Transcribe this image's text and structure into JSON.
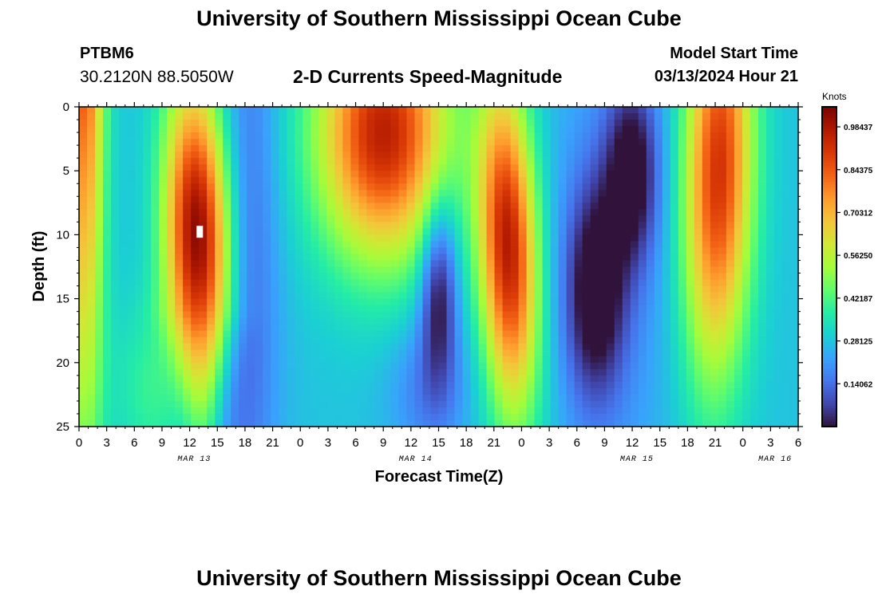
{
  "header": {
    "title": "University of Southern Mississippi Ocean Cube",
    "station_id": "PTBM6",
    "station_coords": "30.2120N  88.5050W",
    "chart_title": "2-D Currents Speed-Magnitude",
    "model_start_label": "Model Start Time",
    "model_start_value": "03/13/2024 Hour 21"
  },
  "footer": {
    "title": "University of Southern Mississippi Ocean Cube"
  },
  "chart_data": {
    "type": "heatmap",
    "title": "2-D Currents Speed-Magnitude",
    "xlabel": "Forecast Time(Z)",
    "ylabel": "Depth (ft)",
    "x_tick_labels": [
      "0",
      "3",
      "6",
      "9",
      "12",
      "15",
      "18",
      "21",
      "0",
      "3",
      "6",
      "9",
      "12",
      "15",
      "18",
      "21",
      "0",
      "3",
      "6",
      "9",
      "12",
      "15",
      "18",
      "21",
      "0",
      "3",
      "6"
    ],
    "date_labels": [
      {
        "text": "MAR 13",
        "hour": 12.5
      },
      {
        "text": "MAR 14",
        "hour": 36.5
      },
      {
        "text": "MAR 15",
        "hour": 60.5
      },
      {
        "text": "MAR 16",
        "hour": 75.5
      }
    ],
    "x_range_hours": [
      0,
      78
    ],
    "y_range_ft": [
      0,
      25
    ],
    "y_ticks": [
      0,
      5,
      10,
      15,
      20,
      25
    ],
    "y_tick_labels": [
      "0",
      "5",
      "10",
      "15",
      "20",
      "25"
    ],
    "colorbar": {
      "title": "Knots",
      "range": [
        0,
        1.05
      ],
      "tick_values": [
        0.98437,
        0.84375,
        0.70312,
        0.5625,
        0.42187,
        0.28125,
        0.14062
      ],
      "tick_labels": [
        "0.98437",
        "0.84375",
        "0.70312",
        "0.56250",
        "0.42187",
        "0.28125",
        "0.14062"
      ],
      "colors": [
        "#30123b",
        "#4145ab",
        "#4675ed",
        "#39a2fc",
        "#1bcfd4",
        "#24eca6",
        "#61fc6c",
        "#a4fc3b",
        "#d1e834",
        "#f3c63a",
        "#fe9b2d",
        "#f36315",
        "#d93806",
        "#b11901",
        "#7a0402"
      ]
    },
    "series": [
      {
        "name": "background",
        "speed_knots": 0.28
      },
      {
        "name": "blue band near hour 18",
        "center_hour": 18,
        "peak_speed_knots": 0.12
      },
      {
        "name": "strong core near hour 12",
        "center_hour": 12.5,
        "depth_ft": 10,
        "peak_speed_knots": 1.03
      },
      {
        "name": "strong surface flow near hour 33",
        "center_hour": 33,
        "depth_ft": 2,
        "peak_speed_knots": 0.88
      },
      {
        "name": "slow core near hour 39",
        "center_hour": 39,
        "depth_ft": 14,
        "peak_speed_knots": 0.0
      },
      {
        "name": "strong core near hour 46.5",
        "center_hour": 46.5,
        "depth_ft": 11,
        "peak_speed_knots": 0.92
      },
      {
        "name": "slow core near hour 56",
        "center_hour": 56,
        "depth_ft": 14.5,
        "peak_speed_knots": 0.0
      },
      {
        "name": "slow core near hour 60",
        "center_hour": 60,
        "depth_ft": 5,
        "peak_speed_knots": 0.02
      },
      {
        "name": "strong core near hour 69.5",
        "center_hour": 69.5,
        "depth_ft": 5,
        "peak_speed_knots": 0.92
      }
    ]
  }
}
